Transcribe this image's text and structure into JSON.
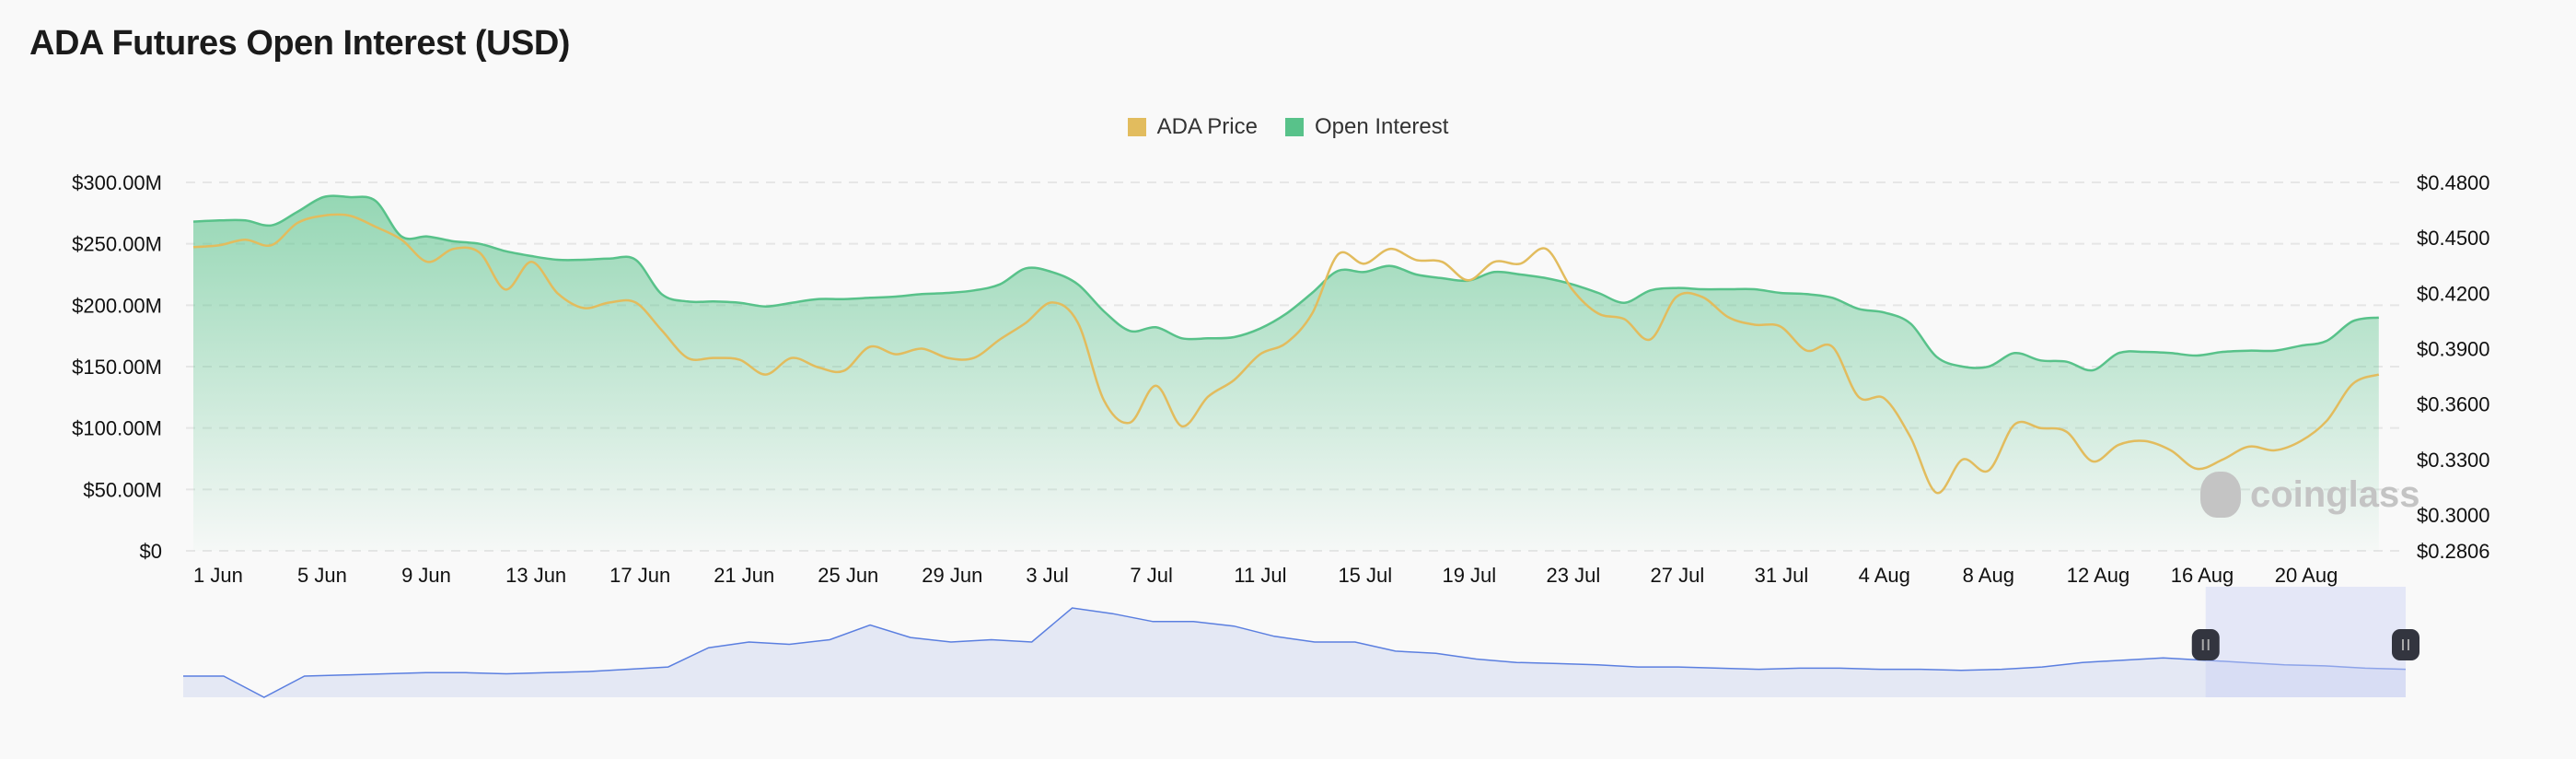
{
  "title": "ADA Futures Open Interest (USD)",
  "legend": [
    {
      "label": "ADA Price",
      "color": "#e2bc5e"
    },
    {
      "label": "Open Interest",
      "color": "#58c28a"
    }
  ],
  "watermark": "coinglass",
  "chart_data": {
    "type": "area",
    "title": "ADA Futures Open Interest (USD)",
    "x_tick_labels": [
      "1 Jun",
      "5 Jun",
      "9 Jun",
      "13 Jun",
      "17 Jun",
      "21 Jun",
      "25 Jun",
      "29 Jun",
      "3 Jul",
      "7 Jul",
      "11 Jul",
      "15 Jul",
      "19 Jul",
      "23 Jul",
      "27 Jul",
      "31 Jul",
      "4 Aug",
      "8 Aug",
      "12 Aug",
      "16 Aug",
      "20 Aug"
    ],
    "x_range": [
      "1 Jun",
      "24 Aug"
    ],
    "y_left": {
      "label": "Open Interest",
      "ticks": [
        "$0",
        "$50.00M",
        "$100.00M",
        "$150.00M",
        "$200.00M",
        "$250.00M",
        "$300.00M"
      ],
      "range": [
        0,
        300
      ],
      "unit": "M USD"
    },
    "y_right": {
      "label": "ADA Price",
      "ticks": [
        "$0.2806",
        "$0.3000",
        "$0.3300",
        "$0.3600",
        "$0.3900",
        "$0.4200",
        "$0.4500",
        "$0.4800"
      ],
      "range": [
        0.2806,
        0.48
      ],
      "unit": "USD"
    },
    "grid": true,
    "legend_position": "top-center",
    "series": [
      {
        "name": "Open Interest",
        "axis": "left",
        "type": "area",
        "color": "#58c28a",
        "values": [
          268,
          269,
          269,
          265,
          276,
          288,
          288,
          285,
          256,
          256,
          252,
          250,
          244,
          240,
          237,
          237,
          238,
          237,
          209,
          203,
          203,
          202,
          199,
          202,
          205,
          205,
          206,
          207,
          209,
          210,
          212,
          217,
          230,
          227,
          217,
          195,
          179,
          182,
          173,
          173,
          174,
          181,
          193,
          210,
          228,
          227,
          232,
          225,
          222,
          220,
          227,
          225,
          222,
          217,
          210,
          202,
          212,
          214,
          213,
          213,
          213,
          210,
          209,
          206,
          197,
          194,
          185,
          158,
          150,
          150,
          161,
          155,
          154,
          147,
          161,
          162,
          161,
          159,
          162,
          163,
          163,
          167,
          171,
          187,
          190
        ]
      },
      {
        "name": "ADA Price",
        "axis": "right",
        "type": "line",
        "color": "#e2bc5e",
        "values": [
          0.445,
          0.446,
          0.449,
          0.446,
          0.458,
          0.462,
          0.462,
          0.456,
          0.449,
          0.437,
          0.444,
          0.442,
          0.422,
          0.437,
          0.42,
          0.412,
          0.415,
          0.415,
          0.4,
          0.385,
          0.385,
          0.384,
          0.376,
          0.385,
          0.38,
          0.378,
          0.391,
          0.387,
          0.39,
          0.385,
          0.385,
          0.395,
          0.404,
          0.415,
          0.404,
          0.362,
          0.35,
          0.37,
          0.348,
          0.364,
          0.373,
          0.387,
          0.393,
          0.409,
          0.441,
          0.436,
          0.444,
          0.438,
          0.437,
          0.427,
          0.437,
          0.436,
          0.444,
          0.422,
          0.409,
          0.406,
          0.395,
          0.418,
          0.418,
          0.407,
          0.403,
          0.402,
          0.389,
          0.391,
          0.364,
          0.363,
          0.342,
          0.312,
          0.33,
          0.324,
          0.349,
          0.347,
          0.345,
          0.329,
          0.338,
          0.34,
          0.335,
          0.325,
          0.33,
          0.337,
          0.335,
          0.34,
          0.351,
          0.371,
          0.376
        ]
      }
    ],
    "navigator": {
      "selection_range": [
        0.91,
        1.0
      ],
      "values": [
        0.3,
        0.3,
        0,
        0.3,
        0.31,
        0.32,
        0.33,
        0.33,
        0.32,
        0.33,
        0.34,
        0.36,
        0.38,
        0.55,
        0.6,
        0.58,
        0.62,
        0.75,
        0.64,
        0.6,
        0.62,
        0.6,
        0.9,
        0.85,
        0.78,
        0.78,
        0.74,
        0.65,
        0.6,
        0.6,
        0.52,
        0.5,
        0.45,
        0.42,
        0.41,
        0.4,
        0.38,
        0.38,
        0.37,
        0.36,
        0.37,
        0.37,
        0.36,
        0.36,
        0.35,
        0.36,
        0.38,
        0.42,
        0.44,
        0.46,
        0.44,
        0.42,
        0.4,
        0.39,
        0.37,
        0.36
      ]
    }
  }
}
